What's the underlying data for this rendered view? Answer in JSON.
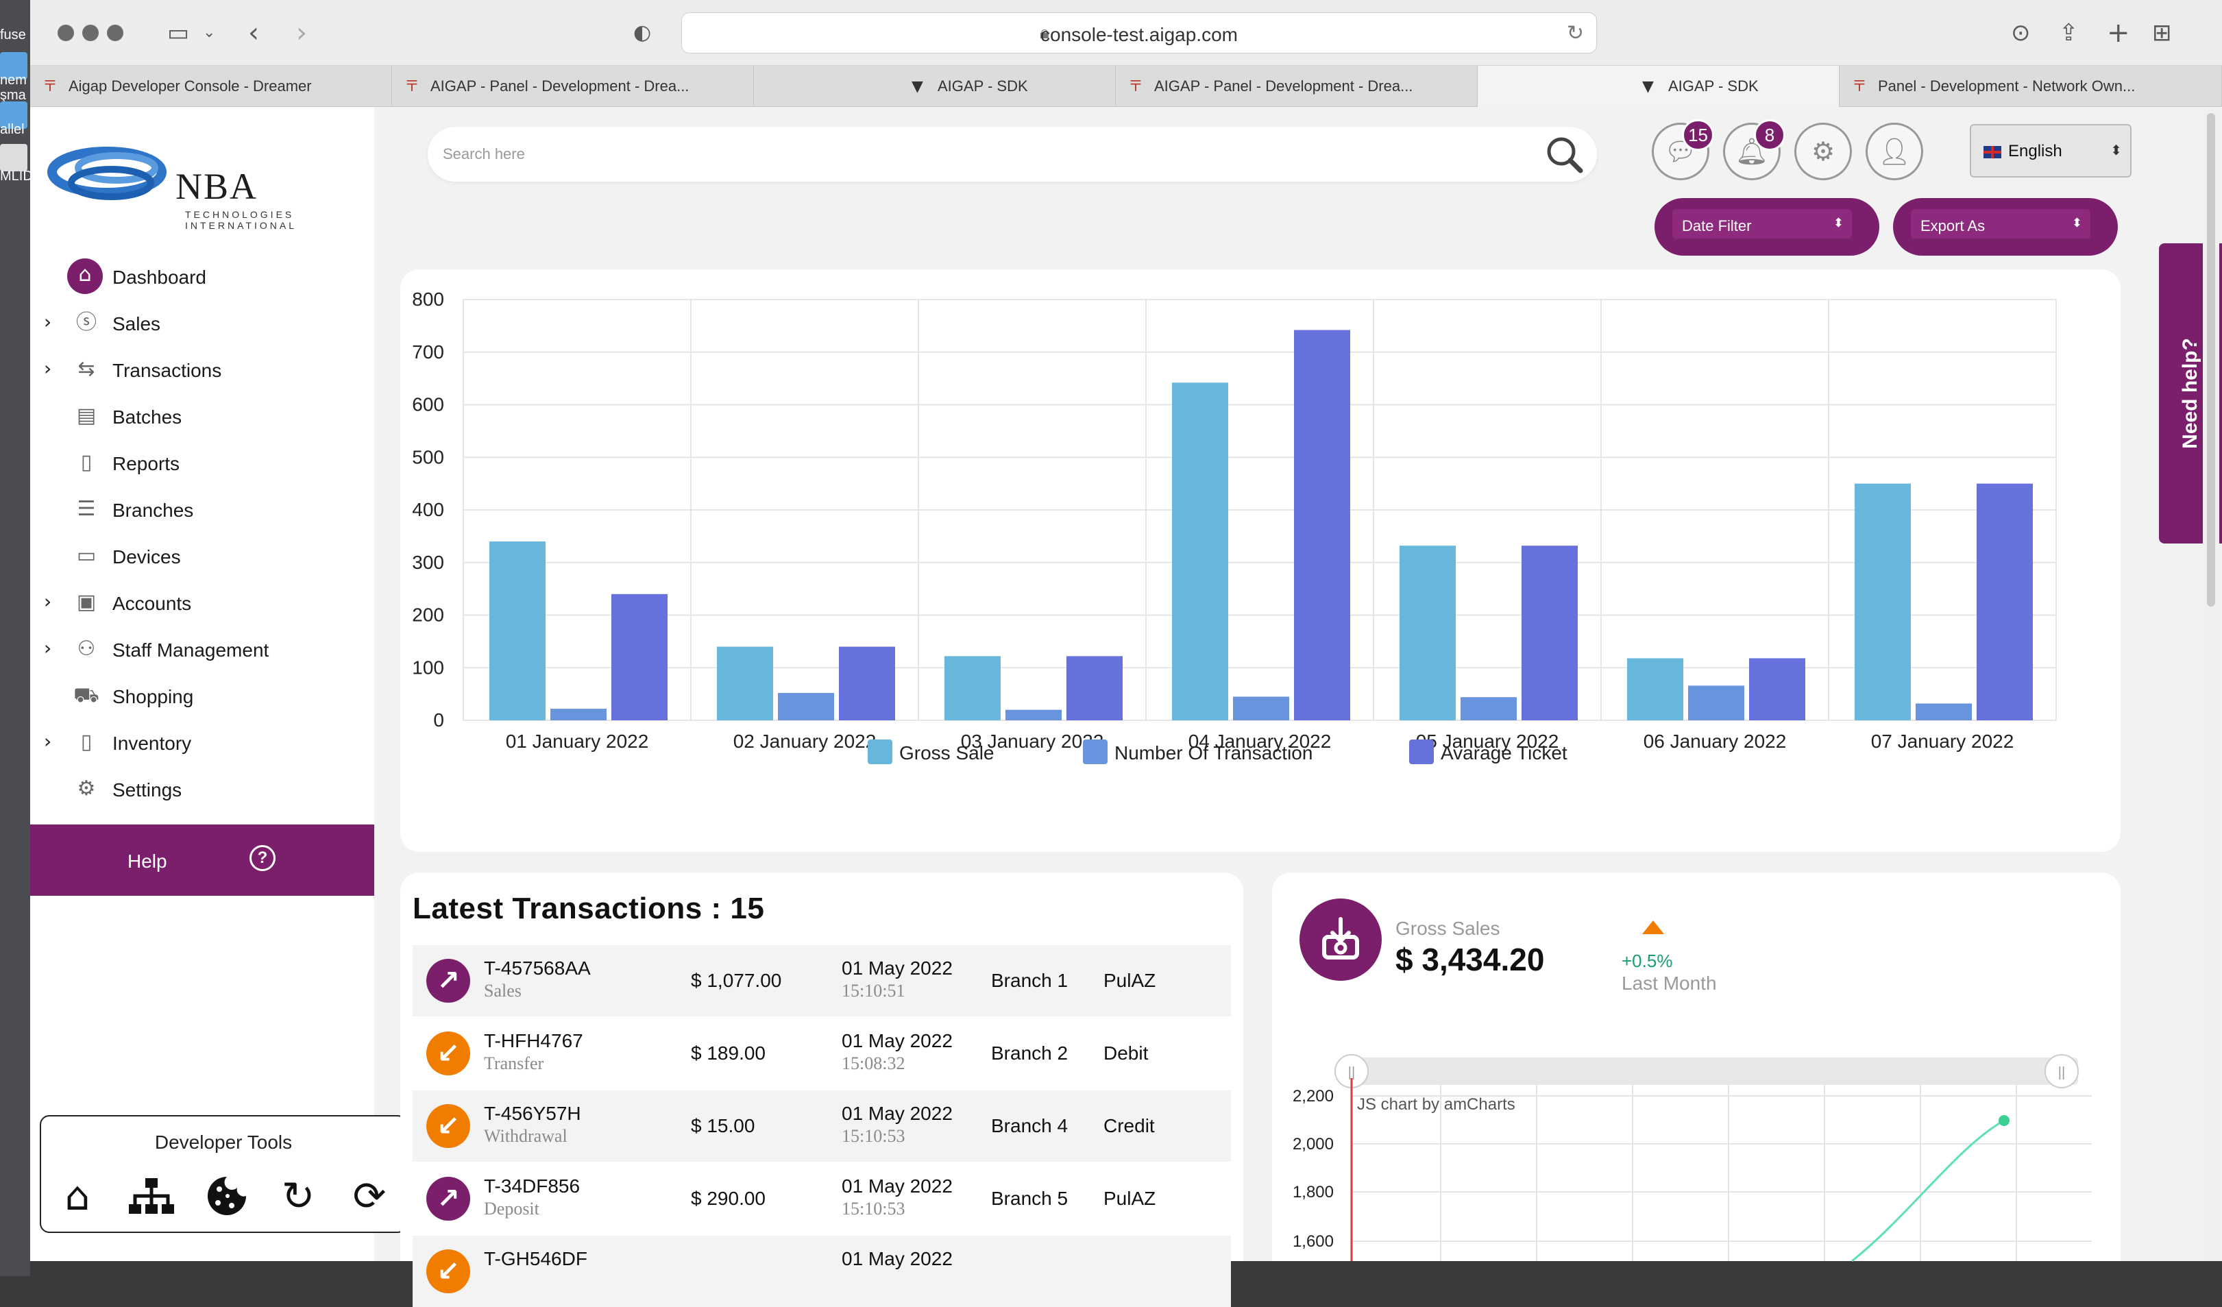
{
  "desktop": {
    "labels": [
      "fuse",
      "nem",
      "şma",
      "allel",
      "MLID"
    ]
  },
  "browser": {
    "url": "console-test.aigap.com",
    "tabs": [
      {
        "label": "Aigap Developer Console - Dreamer",
        "active": false
      },
      {
        "label": "AIGAP - Panel - Development - Drea...",
        "active": false
      },
      {
        "label": "AIGAP - SDK",
        "active": false
      },
      {
        "label": "AIGAP - Panel - Development - Drea...",
        "active": false
      },
      {
        "label": "AIGAP - SDK",
        "active": true
      },
      {
        "label": "Panel - Development - Network Own...",
        "active": false
      }
    ]
  },
  "logo": {
    "name": "NBA",
    "sub1": "TECHNOLOGIES",
    "sub2": "INTERNATIONAL"
  },
  "sidebar": {
    "items": [
      {
        "label": "Dashboard",
        "icon": "home-icon",
        "expandable": false,
        "active": true
      },
      {
        "label": "Sales",
        "icon": "dollar-icon",
        "expandable": true
      },
      {
        "label": "Transactions",
        "icon": "swap-icon",
        "expandable": true
      },
      {
        "label": "Batches",
        "icon": "batch-icon",
        "expandable": false
      },
      {
        "label": "Reports",
        "icon": "clipboard-icon",
        "expandable": false
      },
      {
        "label": "Branches",
        "icon": "branch-icon",
        "expandable": false
      },
      {
        "label": "Devices",
        "icon": "monitor-icon",
        "expandable": false
      },
      {
        "label": "Accounts",
        "icon": "account-card-icon",
        "expandable": true
      },
      {
        "label": "Staff Management",
        "icon": "people-icon",
        "expandable": true
      },
      {
        "label": "Shopping",
        "icon": "basket-icon",
        "expandable": false
      },
      {
        "label": "Inventory",
        "icon": "inventory-icon",
        "expandable": true
      },
      {
        "label": "Settings",
        "icon": "gear-icon",
        "expandable": false
      }
    ],
    "help_label": "Help"
  },
  "devtools": {
    "title": "Developer Tools"
  },
  "header": {
    "search_placeholder": "Search here",
    "messages_count": "15",
    "notifications_count": "8",
    "language": "English",
    "date_filter": "Date Filter",
    "export_as": "Export As",
    "need_help": "Need help?"
  },
  "colors": {
    "brand": "#7b1f6c",
    "gross": "#67b7dc",
    "count": "#6794dc",
    "ticket": "#6771dc"
  },
  "chart_data": {
    "type": "bar",
    "categories": [
      "01 January 2022",
      "02 January 2022",
      "03 January 2022",
      "04 January 2022",
      "05 January 2022",
      "06 January 2022",
      "07 January 2022"
    ],
    "series": [
      {
        "name": "Gross Sale",
        "values": [
          340,
          140,
          122,
          642,
          332,
          118,
          450
        ]
      },
      {
        "name": "Number Of Transaction",
        "values": [
          22,
          52,
          20,
          45,
          44,
          66,
          32
        ]
      },
      {
        "name": "Avarage Ticket",
        "values": [
          240,
          140,
          122,
          742,
          332,
          118,
          450
        ]
      }
    ],
    "ylim": [
      0,
      800
    ],
    "yticks": [
      0,
      100,
      200,
      300,
      400,
      500,
      600,
      700,
      800
    ],
    "grid": true,
    "legend": "bottom-center"
  },
  "transactions": {
    "title": "Latest Transactions : 15",
    "rows": [
      {
        "id": "T-457568AA",
        "type": "Sales",
        "amount": "$ 1,077.00",
        "date": "01 May 2022",
        "time": "15:10:51",
        "branch": "Branch 1",
        "method": "PulAZ",
        "direction": "out",
        "color": "#7b1f6c"
      },
      {
        "id": "T-HFH4767",
        "type": "Transfer",
        "amount": "$ 189.00",
        "date": "01 May 2022",
        "time": "15:08:32",
        "branch": "Branch 2",
        "method": "Debit",
        "direction": "in",
        "color": "#f07c00"
      },
      {
        "id": "T-456Y57H",
        "type": "Withdrawal",
        "amount": "$ 15.00",
        "date": "01 May 2022",
        "time": "15:10:53",
        "branch": "Branch 4",
        "method": "Credit",
        "direction": "in",
        "color": "#f07c00"
      },
      {
        "id": "T-34DF856",
        "type": "Deposit",
        "amount": "$ 290.00",
        "date": "01 May 2022",
        "time": "15:10:53",
        "branch": "Branch 5",
        "method": "PulAZ",
        "direction": "out",
        "color": "#7b1f6c"
      },
      {
        "id": "T-GH546DF",
        "type": "",
        "amount": "",
        "date": "01 May 2022",
        "time": "",
        "branch": "",
        "method": "",
        "direction": "in",
        "color": "#f07c00"
      }
    ]
  },
  "gross_sales": {
    "label": "Gross Sales",
    "value": "$ 3,434.20",
    "change": "+0.5%",
    "period": "Last Month",
    "watermark": "JS chart by amCharts",
    "yticks": [
      "2,200",
      "2,000",
      "1,800",
      "1,600"
    ],
    "scrollbar_handle": "||"
  }
}
